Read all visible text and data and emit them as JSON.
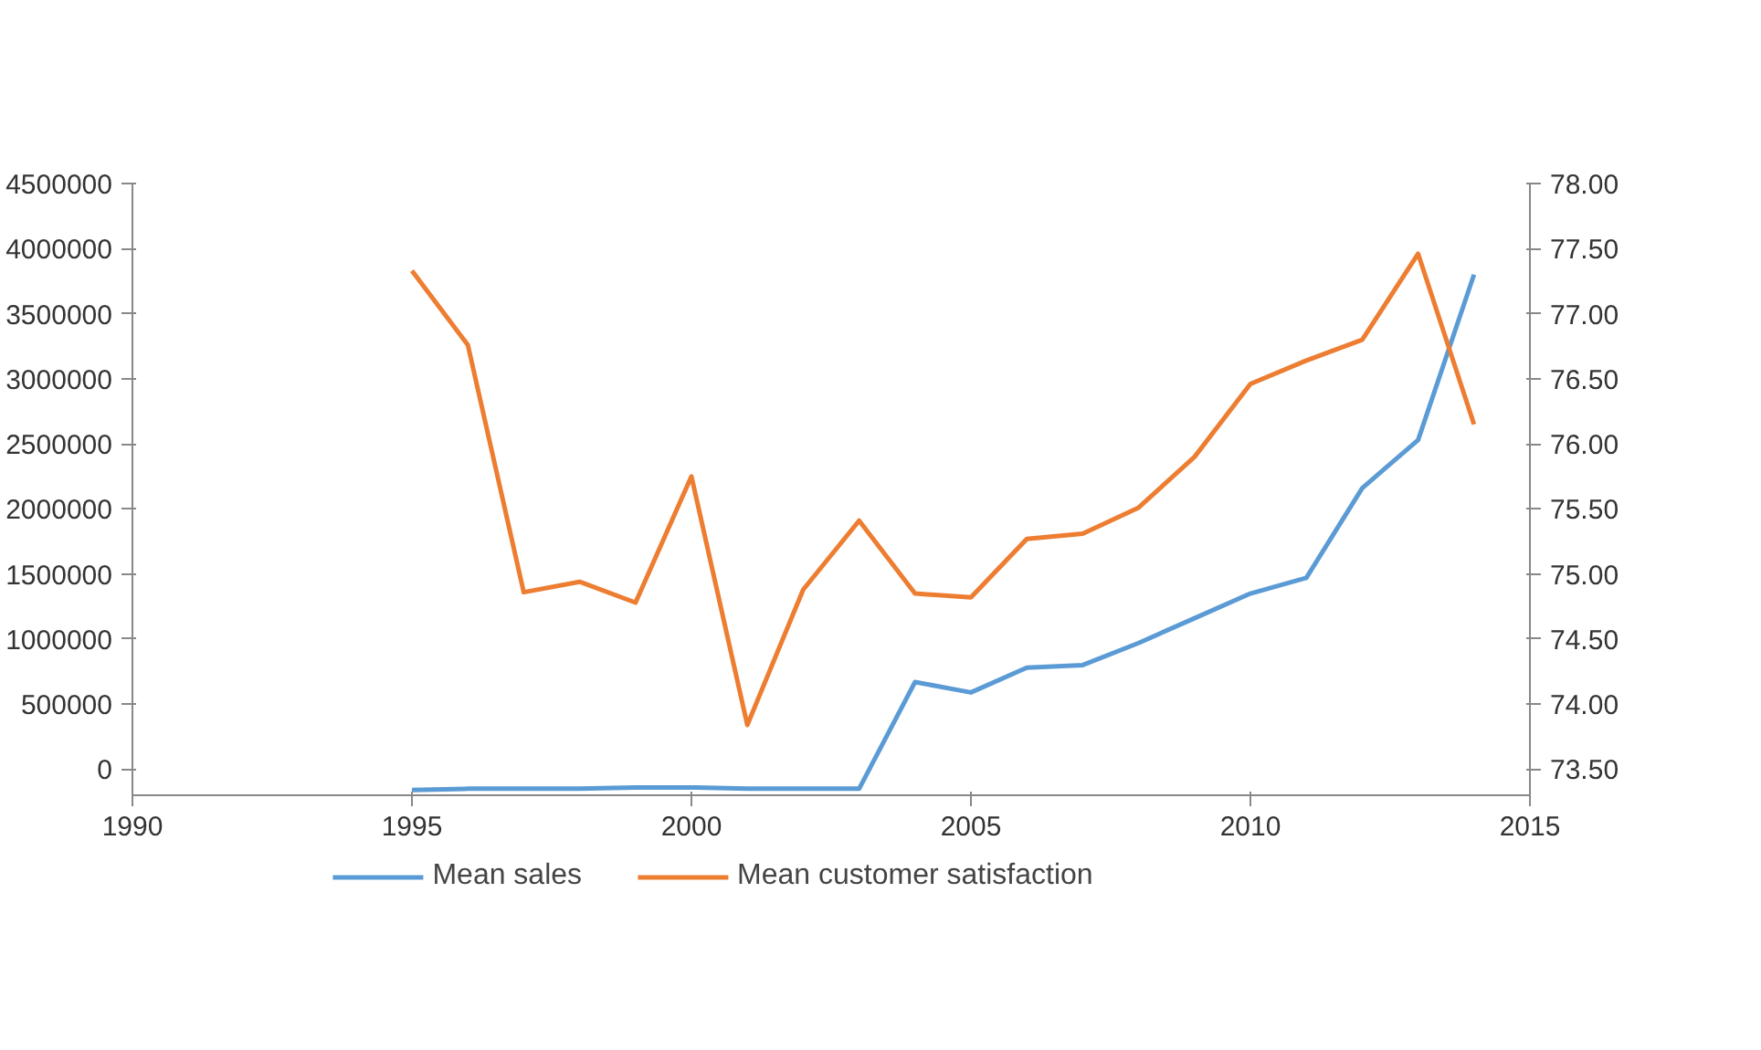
{
  "chart_data": {
    "type": "line",
    "x": [
      1995,
      1996,
      1997,
      1998,
      1999,
      2000,
      2001,
      2002,
      2003,
      2004,
      2005,
      2006,
      2007,
      2008,
      2009,
      2010,
      2011,
      2012,
      2013,
      2014
    ],
    "series": [
      {
        "name": "Mean sales",
        "color": "#5b9bd5",
        "values": [
          -160000,
          -150000,
          -150000,
          -150000,
          -140000,
          -140000,
          -150000,
          -150000,
          -150000,
          670000,
          590000,
          780000,
          800000,
          970000,
          1160000,
          1350000,
          1470000,
          2160000,
          2530000,
          3800000
        ]
      },
      {
        "name": "Mean customer satisfaction",
        "color": "#ed7d31",
        "axis": "y2",
        "values": [
          77.33,
          76.76,
          74.86,
          74.94,
          74.78,
          75.75,
          73.84,
          74.88,
          75.41,
          74.85,
          74.82,
          75.27,
          75.31,
          75.51,
          75.9,
          76.46,
          76.64,
          76.8,
          77.46,
          76.15
        ]
      }
    ],
    "xlim": [
      1990,
      2015
    ],
    "xticks": [
      1990,
      1995,
      2000,
      2005,
      2010,
      2015
    ],
    "ylim": [
      -200000,
      4500000
    ],
    "yticks": [
      0,
      500000,
      1000000,
      1500000,
      2000000,
      2500000,
      3000000,
      3500000,
      4000000,
      4500000
    ],
    "y2lim": [
      73.3,
      78.0
    ],
    "y2ticks": [
      {
        "value": 73.5,
        "label": "73.50"
      },
      {
        "value": 74,
        "label": "74.00"
      },
      {
        "value": 74.5,
        "label": "74.50"
      },
      {
        "value": 75,
        "label": "75.00"
      },
      {
        "value": 75.5,
        "label": "75.50"
      },
      {
        "value": 76,
        "label": "76.00"
      },
      {
        "value": 76.5,
        "label": "76.50"
      },
      {
        "value": 77,
        "label": "77.00"
      },
      {
        "value": 77.5,
        "label": "77.50"
      },
      {
        "value": 78,
        "label": "78.00"
      }
    ],
    "grid": false,
    "legend": "bottom",
    "marker": "none",
    "line_style": "solid"
  }
}
